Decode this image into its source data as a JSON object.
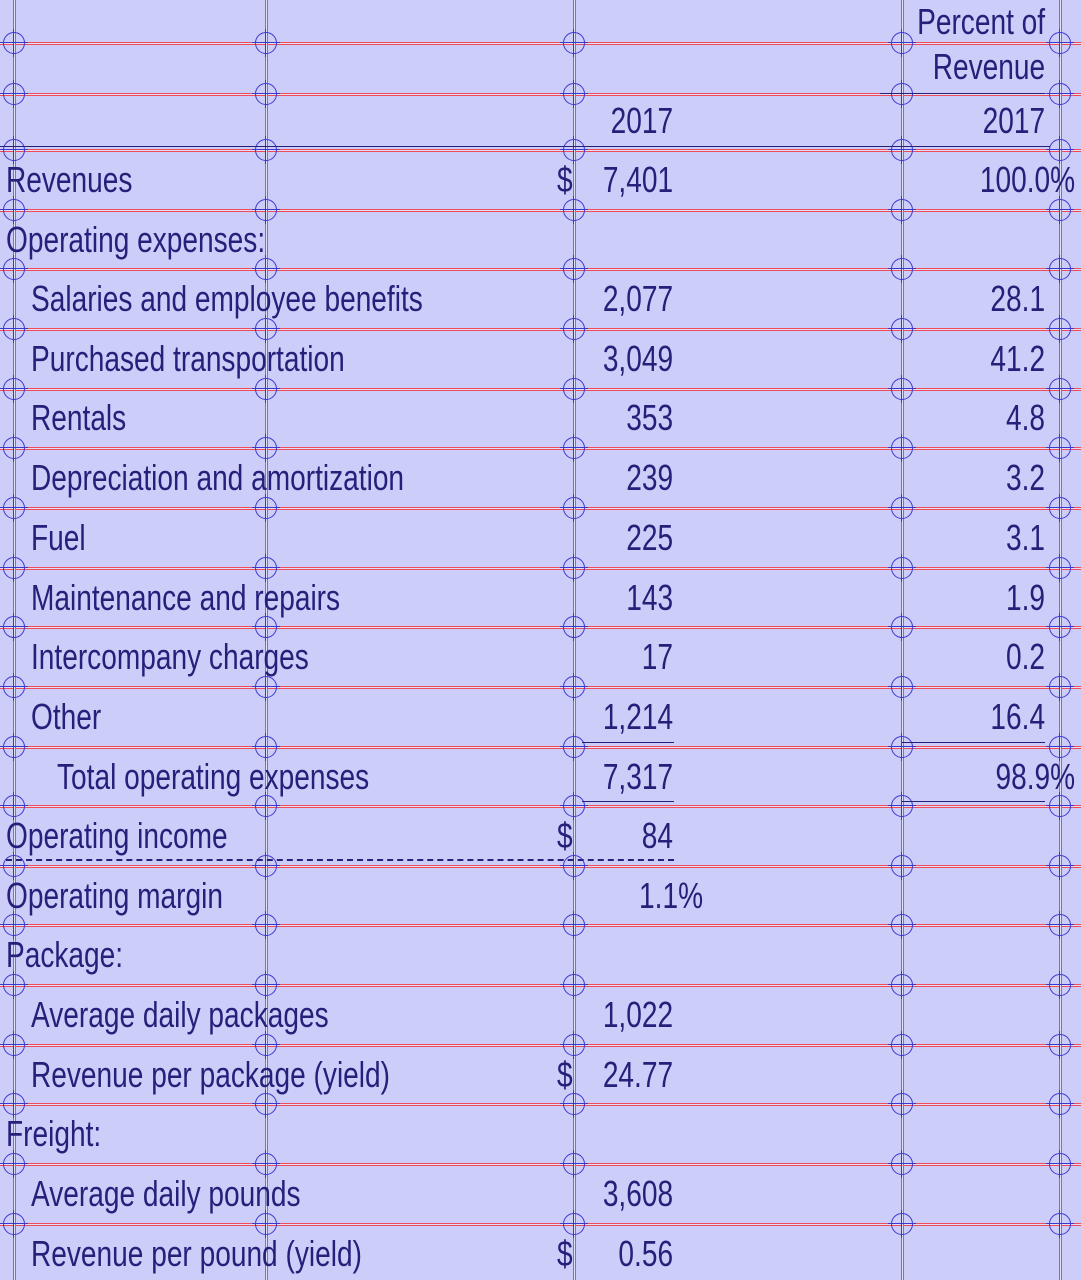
{
  "header": {
    "percent_of_revenue_line1": "Percent of",
    "percent_of_revenue_line2": "Revenue",
    "year_col": "2017",
    "year_pct_col": "2017"
  },
  "currency_symbol": "$",
  "rows": {
    "revenues": {
      "label": "Revenues",
      "value": "7,401",
      "pct": "100.0%"
    },
    "operating_expenses": {
      "label": "Operating expenses:"
    },
    "salaries": {
      "label": "Salaries and employee benefits",
      "value": "2,077",
      "pct": "28.1"
    },
    "purchased_transportation": {
      "label": "Purchased transportation",
      "value": "3,049",
      "pct": "41.2"
    },
    "rentals": {
      "label": "Rentals",
      "value": "353",
      "pct": "4.8"
    },
    "depreciation": {
      "label": "Depreciation and amortization",
      "value": "239",
      "pct": "3.2"
    },
    "fuel": {
      "label": "Fuel",
      "value": "225",
      "pct": "3.1"
    },
    "maintenance": {
      "label": "Maintenance and repairs",
      "value": "143",
      "pct": "1.9"
    },
    "intercompany": {
      "label": "Intercompany charges",
      "value": "17",
      "pct": "0.2"
    },
    "other": {
      "label": "Other",
      "value": "1,214",
      "pct": "16.4"
    },
    "total_operating_expenses": {
      "label": "Total operating expenses",
      "value": "7,317",
      "pct": "98.9%"
    },
    "operating_income": {
      "label": "Operating income",
      "value": "84"
    },
    "operating_margin": {
      "label": "Operating margin",
      "value": "1.1%"
    },
    "package": {
      "label": "Package:"
    },
    "avg_daily_packages": {
      "label": "Average daily packages",
      "value": "1,022"
    },
    "revenue_per_package": {
      "label": "Revenue per package (yield)",
      "value": "24.77"
    },
    "freight": {
      "label": "Freight:"
    },
    "avg_daily_pounds": {
      "label": "Average daily pounds",
      "value": "3,608"
    },
    "revenue_per_pound": {
      "label": "Revenue per pound (yield)",
      "value": "0.56"
    }
  },
  "colors": {
    "background": "#cdcdf9",
    "text": "#25207a",
    "grid_line": "#ef4b5a",
    "marker": "#3a38d0"
  }
}
